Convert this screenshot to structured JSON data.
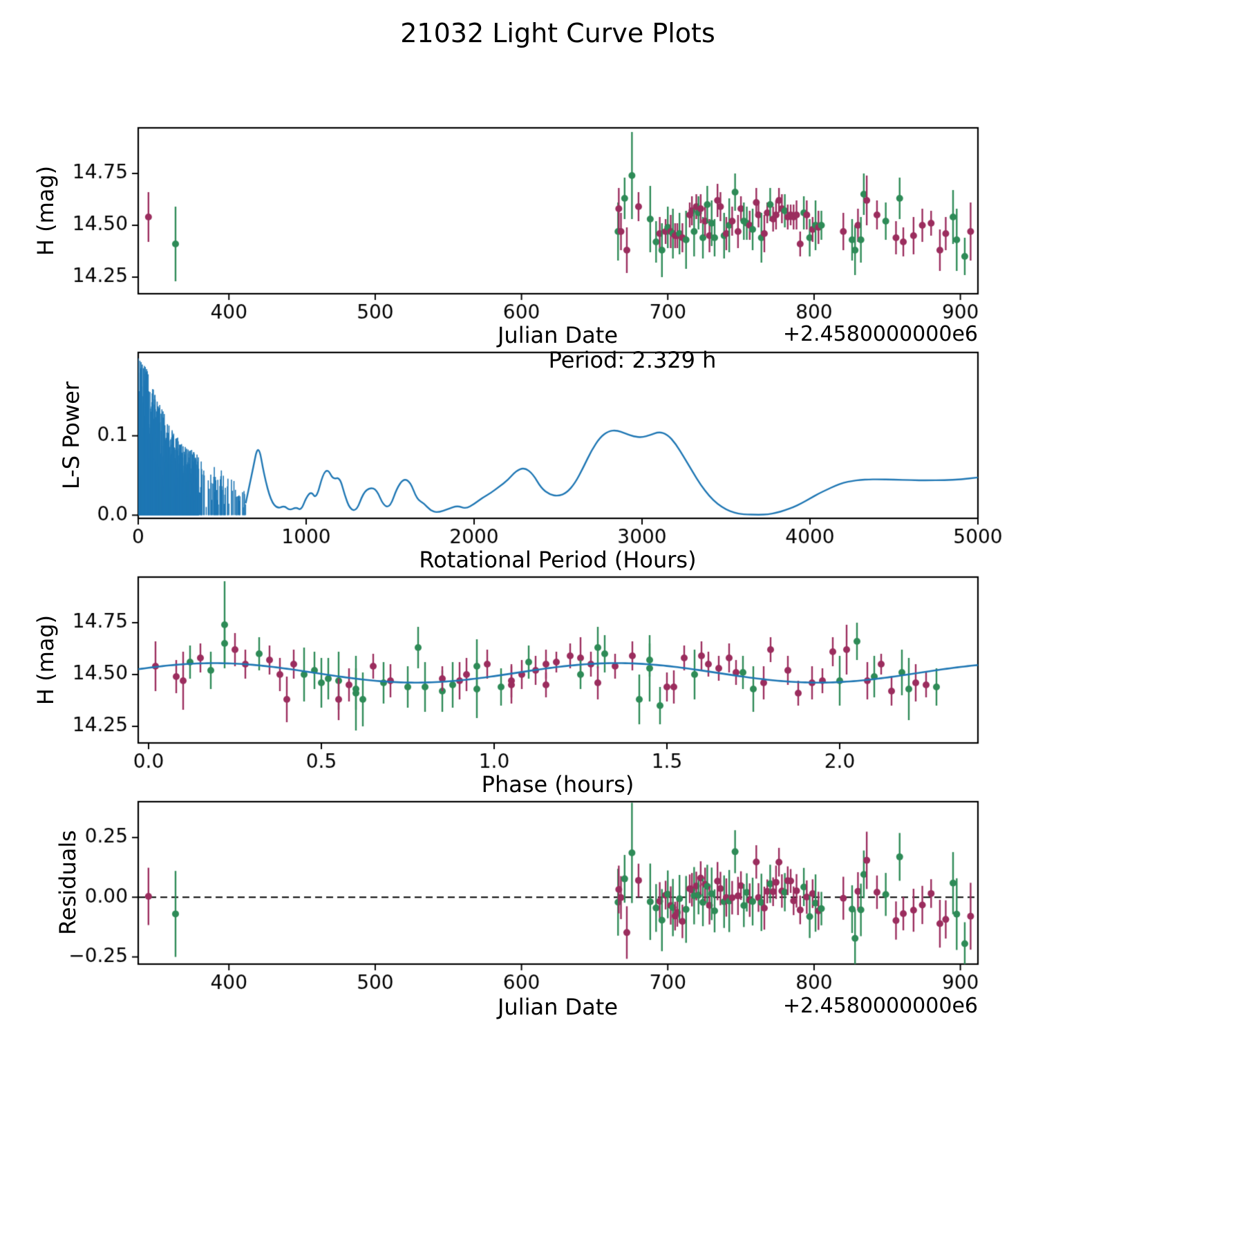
{
  "title": "21032 Light Curve Plots",
  "colors": {
    "line": "#1f77b4",
    "axis": "#000000",
    "background": "#ffffff"
  },
  "chart_data": {
    "type": "multi-panel",
    "panel_count": 4,
    "filter_colors": {
      "g": "#2e8b57",
      "p": "#9b2d5e"
    },
    "panels": [
      {
        "type": "errorbar-scatter",
        "name": "light-curve",
        "xlabel": "Julian Date",
        "ylabel": "H (mag)",
        "x_offset_text": "+2.4580000000e6",
        "xlim": [
          338,
          912
        ],
        "ylim": [
          14.17,
          14.97
        ],
        "xtick_values": [
          400,
          500,
          600,
          700,
          800,
          900
        ],
        "xtick_labels": [
          "400",
          "500",
          "600",
          "700",
          "800",
          "900"
        ],
        "ytick_values": [
          14.25,
          14.5,
          14.75
        ],
        "ytick_labels": [
          "14.25",
          "14.50",
          "14.75"
        ],
        "x_field": "jd",
        "y_field": "mag"
      },
      {
        "type": "line",
        "name": "periodogram",
        "xlabel": "Rotational Period (Hours)",
        "ylabel": "L-S Power",
        "annotation": "Period: 2.329 h",
        "xlim": [
          0,
          5000
        ],
        "ylim": [
          -0.004,
          0.205
        ],
        "xtick_values": [
          0,
          1000,
          2000,
          3000,
          4000,
          5000
        ],
        "xtick_labels": [
          "0",
          "1000",
          "2000",
          "3000",
          "4000",
          "5000"
        ],
        "ytick_values": [
          0,
          0.1
        ],
        "ytick_labels": [
          "0.0",
          "0.1"
        ]
      },
      {
        "type": "errorbar-scatter-with-fit",
        "name": "phase-folded",
        "xlabel": "Phase (hours)",
        "ylabel": "H (mag)",
        "xlim": [
          -0.03,
          2.4
        ],
        "ylim": [
          14.17,
          14.97
        ],
        "xtick_values": [
          0,
          0.5,
          1,
          1.5,
          2
        ],
        "xtick_labels": [
          "0.0",
          "0.5",
          "1.0",
          "1.5",
          "2.0"
        ],
        "ytick_values": [
          14.25,
          14.5,
          14.75
        ],
        "ytick_labels": [
          "14.25",
          "14.50",
          "14.75"
        ],
        "x_field": "phase",
        "y_field": "mag"
      },
      {
        "type": "errorbar-scatter",
        "name": "residuals",
        "xlabel": "Julian Date",
        "ylabel": "Residuals",
        "x_offset_text": "+2.4580000000e6",
        "zero_line": true,
        "xlim": [
          338,
          912
        ],
        "ylim": [
          -0.28,
          0.4
        ],
        "xtick_values": [
          400,
          500,
          600,
          700,
          800,
          900
        ],
        "xtick_labels": [
          "400",
          "500",
          "600",
          "700",
          "800",
          "900"
        ],
        "ytick_values": [
          -0.25,
          0,
          0.25
        ],
        "ytick_labels": [
          "−0.25",
          "0.00",
          "0.25"
        ],
        "x_field": "jd",
        "y_field": "residual"
      }
    ],
    "fit_model": {
      "period_hours": 2.329,
      "mean_mag": 14.508,
      "amplitude_mag": 0.047,
      "peak_phase_hours": 0.19,
      "cycle_hours": 1.165
    },
    "observations": {
      "columns": [
        "jd",
        "phase_hours",
        "mag",
        "mag_err",
        "filter"
      ],
      "rows": [
        [
          345.0,
          0.02,
          14.54,
          0.12,
          "p"
        ],
        [
          363.5,
          0.6,
          14.41,
          0.18,
          "g"
        ],
        [
          666.0,
          0.55,
          14.47,
          0.14,
          "g"
        ],
        [
          666.5,
          1.25,
          14.58,
          0.1,
          "p"
        ],
        [
          668.0,
          0.9,
          14.47,
          0.09,
          "p"
        ],
        [
          670.5,
          1.3,
          14.63,
          0.1,
          "g"
        ],
        [
          672.0,
          0.4,
          14.38,
          0.11,
          "p"
        ],
        [
          675.5,
          0.22,
          14.74,
          0.21,
          "g"
        ],
        [
          680.0,
          1.6,
          14.59,
          0.07,
          "p"
        ],
        [
          688.0,
          1.45,
          14.53,
          0.16,
          "g"
        ],
        [
          692.0,
          0.85,
          14.42,
          0.1,
          "g"
        ],
        [
          694.5,
          1.78,
          14.46,
          0.08,
          "p"
        ],
        [
          696.0,
          0.62,
          14.38,
          0.13,
          "g"
        ],
        [
          698.5,
          1.95,
          14.47,
          0.06,
          "p"
        ],
        [
          700.0,
          2.1,
          14.49,
          0.1,
          "g"
        ],
        [
          702.0,
          1.05,
          14.47,
          0.08,
          "p"
        ],
        [
          703.5,
          0.5,
          14.46,
          0.12,
          "g"
        ],
        [
          705.0,
          1.15,
          14.45,
          0.06,
          "p"
        ],
        [
          706.5,
          2.25,
          14.45,
          0.06,
          "p"
        ],
        [
          708.0,
          0.68,
          14.46,
          0.1,
          "g"
        ],
        [
          710.0,
          1.5,
          14.44,
          0.07,
          "p"
        ],
        [
          712.5,
          0.95,
          14.43,
          0.14,
          "g"
        ],
        [
          715.0,
          1.62,
          14.55,
          0.06,
          "p"
        ],
        [
          716.5,
          0.35,
          14.57,
          0.07,
          "p"
        ],
        [
          718.0,
          2.0,
          14.47,
          0.12,
          "g"
        ],
        [
          719.5,
          1.22,
          14.59,
          0.06,
          "p"
        ],
        [
          721.0,
          0.12,
          14.56,
          0.08,
          "g"
        ],
        [
          722.5,
          1.68,
          14.58,
          0.07,
          "p"
        ],
        [
          724.0,
          0.75,
          14.44,
          0.1,
          "g"
        ],
        [
          725.5,
          1.85,
          14.52,
          0.07,
          "p"
        ],
        [
          727.0,
          1.32,
          14.6,
          0.09,
          "g"
        ],
        [
          728.5,
          0.58,
          14.45,
          0.08,
          "p"
        ],
        [
          730.0,
          2.18,
          14.51,
          0.11,
          "g"
        ],
        [
          732.0,
          1.02,
          14.44,
          0.09,
          "g"
        ],
        [
          734.0,
          0.25,
          14.62,
          0.08,
          "p"
        ],
        [
          736.0,
          1.4,
          14.59,
          0.07,
          "p"
        ],
        [
          738.5,
          0.88,
          14.45,
          0.11,
          "g"
        ],
        [
          740.0,
          1.92,
          14.46,
          0.08,
          "p"
        ],
        [
          742.0,
          0.45,
          14.5,
          0.13,
          "g"
        ],
        [
          744.0,
          1.12,
          14.52,
          0.07,
          "p"
        ],
        [
          746.0,
          2.05,
          14.66,
          0.09,
          "g"
        ],
        [
          748.0,
          0.7,
          14.47,
          0.08,
          "p"
        ],
        [
          750.0,
          1.55,
          14.58,
          0.06,
          "p"
        ],
        [
          752.0,
          0.18,
          14.52,
          0.09,
          "g"
        ],
        [
          754.0,
          1.72,
          14.51,
          0.08,
          "g"
        ],
        [
          756.0,
          1.08,
          14.5,
          0.07,
          "p"
        ],
        [
          758.0,
          0.52,
          14.48,
          0.1,
          "g"
        ],
        [
          760.5,
          1.98,
          14.61,
          0.07,
          "p"
        ],
        [
          762.0,
          1.28,
          14.55,
          0.06,
          "p"
        ],
        [
          764.0,
          0.8,
          14.44,
          0.12,
          "g"
        ],
        [
          766.0,
          2.22,
          14.46,
          0.09,
          "p"
        ],
        [
          768.0,
          1.18,
          14.56,
          0.05,
          "p"
        ],
        [
          770.0,
          0.32,
          14.6,
          0.08,
          "g"
        ],
        [
          772.0,
          1.65,
          14.53,
          0.06,
          "p"
        ],
        [
          774.0,
          0.98,
          14.55,
          0.07,
          "p"
        ],
        [
          776.0,
          1.8,
          14.62,
          0.06,
          "p"
        ],
        [
          778.0,
          0.15,
          14.58,
          0.07,
          "p"
        ],
        [
          780.0,
          1.45,
          14.57,
          0.08,
          "g"
        ],
        [
          782.0,
          0.65,
          14.54,
          0.06,
          "p"
        ],
        [
          784.0,
          2.12,
          14.55,
          0.05,
          "p"
        ],
        [
          786.0,
          1.35,
          14.54,
          0.06,
          "p"
        ],
        [
          788.0,
          0.42,
          14.55,
          0.07,
          "p"
        ],
        [
          790.5,
          1.88,
          14.41,
          0.06,
          "p"
        ],
        [
          793.0,
          1.1,
          14.56,
          0.08,
          "g"
        ],
        [
          795.0,
          0.28,
          14.55,
          0.07,
          "p"
        ],
        [
          797.0,
          2.28,
          14.44,
          0.09,
          "g"
        ],
        [
          799.0,
          0.85,
          14.48,
          0.06,
          "p"
        ],
        [
          801.0,
          1.58,
          14.5,
          0.12,
          "g"
        ],
        [
          803.0,
          0.08,
          14.49,
          0.08,
          "p"
        ],
        [
          805.0,
          1.25,
          14.5,
          0.07,
          "g"
        ],
        [
          820.0,
          2.08,
          14.47,
          0.09,
          "p"
        ],
        [
          826.0,
          0.6,
          14.43,
          0.1,
          "g"
        ],
        [
          828.0,
          1.42,
          14.38,
          0.12,
          "g"
        ],
        [
          830.0,
          0.92,
          14.5,
          0.08,
          "p"
        ],
        [
          832.0,
          1.75,
          14.43,
          0.11,
          "g"
        ],
        [
          834.0,
          0.22,
          14.65,
          0.1,
          "g"
        ],
        [
          836.0,
          2.02,
          14.62,
          0.12,
          "p"
        ],
        [
          843.0,
          1.15,
          14.55,
          0.07,
          "p"
        ],
        [
          849.0,
          0.48,
          14.52,
          0.09,
          "g"
        ],
        [
          856.0,
          1.52,
          14.44,
          0.08,
          "p"
        ],
        [
          858.5,
          0.78,
          14.63,
          0.1,
          "g"
        ],
        [
          861.0,
          2.15,
          14.42,
          0.07,
          "p"
        ],
        [
          868.0,
          1.05,
          14.45,
          0.09,
          "p"
        ],
        [
          874.0,
          0.38,
          14.5,
          0.08,
          "p"
        ],
        [
          880.0,
          1.7,
          14.51,
          0.06,
          "p"
        ],
        [
          886.0,
          0.55,
          14.38,
          0.1,
          "p"
        ],
        [
          890.0,
          1.3,
          14.46,
          0.08,
          "p"
        ],
        [
          895.0,
          0.95,
          14.54,
          0.13,
          "g"
        ],
        [
          897.5,
          2.2,
          14.43,
          0.15,
          "g"
        ],
        [
          903.0,
          1.48,
          14.35,
          0.09,
          "g"
        ],
        [
          907.0,
          0.1,
          14.47,
          0.14,
          "p"
        ]
      ]
    },
    "periodogram": {
      "seed": 7,
      "noise_region": [
        1,
        640
      ],
      "noise_envelope": [
        [
          0,
          0.198
        ],
        [
          30,
          0.198
        ],
        [
          80,
          0.165
        ],
        [
          140,
          0.135
        ],
        [
          200,
          0.108
        ],
        [
          260,
          0.092
        ],
        [
          320,
          0.082
        ],
        [
          380,
          0.072
        ],
        [
          440,
          0.064
        ],
        [
          500,
          0.056
        ],
        [
          560,
          0.047
        ],
        [
          640,
          0.032
        ]
      ],
      "curve": [
        [
          640,
          0.015
        ],
        [
          680,
          0.055
        ],
        [
          715,
          0.092
        ],
        [
          750,
          0.05
        ],
        [
          790,
          0.018
        ],
        [
          830,
          0.008
        ],
        [
          870,
          0.012
        ],
        [
          900,
          0.006
        ],
        [
          940,
          0.01
        ],
        [
          970,
          0.006
        ],
        [
          1000,
          0.022
        ],
        [
          1030,
          0.03
        ],
        [
          1060,
          0.02
        ],
        [
          1100,
          0.052
        ],
        [
          1130,
          0.058
        ],
        [
          1160,
          0.045
        ],
        [
          1200,
          0.048
        ],
        [
          1230,
          0.025
        ],
        [
          1260,
          0.008
        ],
        [
          1300,
          0.005
        ],
        [
          1340,
          0.028
        ],
        [
          1380,
          0.035
        ],
        [
          1420,
          0.032
        ],
        [
          1460,
          0.012
        ],
        [
          1500,
          0.01
        ],
        [
          1540,
          0.034
        ],
        [
          1580,
          0.046
        ],
        [
          1620,
          0.042
        ],
        [
          1660,
          0.02
        ],
        [
          1700,
          0.015
        ],
        [
          1740,
          0.006
        ],
        [
          1780,
          0.003
        ],
        [
          1850,
          0.008
        ],
        [
          1900,
          0.012
        ],
        [
          1950,
          0.008
        ],
        [
          2000,
          0.014
        ],
        [
          2050,
          0.022
        ],
        [
          2100,
          0.028
        ],
        [
          2150,
          0.036
        ],
        [
          2200,
          0.044
        ],
        [
          2250,
          0.056
        ],
        [
          2300,
          0.06
        ],
        [
          2350,
          0.052
        ],
        [
          2400,
          0.034
        ],
        [
          2450,
          0.026
        ],
        [
          2500,
          0.024
        ],
        [
          2550,
          0.028
        ],
        [
          2600,
          0.04
        ],
        [
          2650,
          0.06
        ],
        [
          2700,
          0.082
        ],
        [
          2750,
          0.098
        ],
        [
          2800,
          0.106
        ],
        [
          2850,
          0.107
        ],
        [
          2900,
          0.103
        ],
        [
          2950,
          0.099
        ],
        [
          3000,
          0.098
        ],
        [
          3050,
          0.101
        ],
        [
          3100,
          0.105
        ],
        [
          3150,
          0.102
        ],
        [
          3200,
          0.09
        ],
        [
          3250,
          0.073
        ],
        [
          3300,
          0.055
        ],
        [
          3350,
          0.038
        ],
        [
          3400,
          0.024
        ],
        [
          3450,
          0.014
        ],
        [
          3500,
          0.007
        ],
        [
          3550,
          0.003
        ],
        [
          3600,
          0.001
        ],
        [
          3700,
          0.0005
        ],
        [
          3750,
          0.001
        ],
        [
          3800,
          0.003
        ],
        [
          3850,
          0.006
        ],
        [
          3900,
          0.01
        ],
        [
          3950,
          0.015
        ],
        [
          4000,
          0.021
        ],
        [
          4050,
          0.027
        ],
        [
          4100,
          0.032
        ],
        [
          4150,
          0.037
        ],
        [
          4200,
          0.041
        ],
        [
          4250,
          0.043
        ],
        [
          4300,
          0.0445
        ],
        [
          4350,
          0.045
        ],
        [
          4400,
          0.0452
        ],
        [
          4500,
          0.0448
        ],
        [
          4600,
          0.044
        ],
        [
          4700,
          0.0438
        ],
        [
          4800,
          0.0442
        ],
        [
          4900,
          0.045
        ],
        [
          5000,
          0.0475
        ]
      ]
    }
  }
}
